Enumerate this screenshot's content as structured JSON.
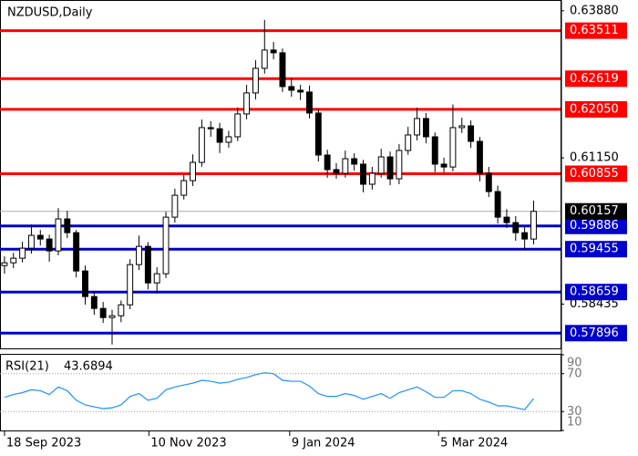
{
  "chart_data": {
    "type": "candlestick",
    "title": "NZDUSD,Daily",
    "open": [
      0.5915,
      0.59202,
      0.59287,
      0.59473,
      0.59711,
      0.59643,
      0.59422,
      0.60016,
      0.59761,
      0.5905,
      0.58575,
      0.58355,
      0.58185,
      0.58219,
      0.58422,
      0.59168,
      0.59507,
      0.58829,
      0.58999,
      0.60049,
      0.60456,
      0.60727,
      0.61066,
      0.61711,
      0.6169,
      0.61439,
      0.61541,
      0.61965,
      0.62355,
      0.62812,
      0.63151,
      0.631,
      0.62473,
      0.62405,
      0.62372,
      0.61982,
      0.61202,
      0.60931,
      0.60863,
      0.61134,
      0.61033,
      0.6066,
      0.60863,
      0.61168,
      0.60761,
      0.61287,
      0.61575,
      0.6188,
      0.61541,
      0.61033,
      0.6098,
      0.61711,
      0.61744,
      0.61456,
      0.60863,
      0.60524,
      0.60049,
      0.59948,
      0.59761,
      0.59643
    ],
    "high": [
      0.59322,
      0.59387,
      0.59593,
      0.59911,
      0.59811,
      0.59723,
      0.60216,
      0.60166,
      0.59811,
      0.5915,
      0.58655,
      0.58475,
      0.58329,
      0.58502,
      0.59268,
      0.59707,
      0.59587,
      0.59119,
      0.60149,
      0.60576,
      0.60837,
      0.61216,
      0.61861,
      0.61831,
      0.61798,
      0.61651,
      0.62085,
      0.62505,
      0.62962,
      0.63711,
      0.63301,
      0.6318,
      0.62623,
      0.62505,
      0.62492,
      0.62062,
      0.61302,
      0.61051,
      0.61284,
      0.61234,
      0.61113,
      0.60983,
      0.61318,
      0.61268,
      0.61407,
      0.61725,
      0.6208,
      0.6198,
      0.61621,
      0.61153,
      0.6214,
      0.61894,
      0.61844,
      0.61536,
      0.60983,
      0.60634,
      0.60199,
      0.60068,
      0.59871,
      0.60357
    ],
    "low": [
      0.59,
      0.59102,
      0.59207,
      0.59373,
      0.59523,
      0.59222,
      0.59342,
      0.59661,
      0.5893,
      0.58425,
      0.58235,
      0.58085,
      0.57685,
      0.58099,
      0.58342,
      0.59068,
      0.58709,
      0.58629,
      0.58919,
      0.59949,
      0.60376,
      0.60627,
      0.60986,
      0.6154,
      0.61239,
      0.61339,
      0.61461,
      0.61865,
      0.62235,
      0.62712,
      0.6298,
      0.62373,
      0.62285,
      0.62222,
      0.61882,
      0.61082,
      0.60781,
      0.60763,
      0.60783,
      0.60913,
      0.6051,
      0.6056,
      0.60783,
      0.60641,
      0.60661,
      0.61207,
      0.61475,
      0.61421,
      0.60883,
      0.6088,
      0.609,
      0.61611,
      0.61336,
      0.60713,
      0.60424,
      0.59929,
      0.59848,
      0.59611,
      0.59443,
      0.59543
    ],
    "close": [
      0.59202,
      0.59287,
      0.59473,
      0.59711,
      0.59643,
      0.59422,
      0.60016,
      0.59761,
      0.5905,
      0.58575,
      0.58355,
      0.58185,
      0.58219,
      0.58422,
      0.59168,
      0.59507,
      0.58829,
      0.58999,
      0.60049,
      0.60456,
      0.60727,
      0.61066,
      0.61711,
      0.6169,
      0.61439,
      0.61541,
      0.61965,
      0.62355,
      0.62812,
      0.63151,
      0.631,
      0.62473,
      0.62405,
      0.62372,
      0.61982,
      0.61202,
      0.60931,
      0.60863,
      0.61134,
      0.61033,
      0.6066,
      0.60863,
      0.61168,
      0.60761,
      0.61287,
      0.61575,
      0.6188,
      0.61541,
      0.61033,
      0.6098,
      0.61711,
      0.61744,
      0.61456,
      0.60863,
      0.60524,
      0.60049,
      0.59948,
      0.59761,
      0.59643,
      0.60157
    ],
    "up_color": "#ffffff",
    "down_color": "#000000",
    "outline_color": "#000000",
    "xlim": [
      -0.5,
      62
    ],
    "xticks": [
      {
        "value": 0,
        "label": "18 Sep 2023"
      },
      {
        "value": 16.1,
        "label": "10 Nov 2023"
      },
      {
        "value": 31.8,
        "label": "9 Jan 2024"
      },
      {
        "value": 48.4,
        "label": "5 Mar 2024"
      }
    ],
    "ylim": [
      0.5763,
      0.6408
    ],
    "yticks": [
      {
        "value": 0.6388,
        "label": "0.63880"
      },
      {
        "value": 0.6115,
        "label": "0.61150"
      },
      {
        "value": 0.58435,
        "label": "0.58435"
      }
    ],
    "levels": [
      {
        "value": 0.63511,
        "label": "0.63511",
        "color": "#ff0000"
      },
      {
        "value": 0.62619,
        "label": "0.62619",
        "color": "#ff0000"
      },
      {
        "value": 0.6205,
        "label": "0.62050",
        "color": "#ff0000"
      },
      {
        "value": 0.60855,
        "label": "0.60855",
        "color": "#ff0000"
      },
      {
        "value": 0.59886,
        "label": "0.59886",
        "color": "#0000cc"
      },
      {
        "value": 0.59455,
        "label": "0.59455",
        "color": "#0000cc"
      },
      {
        "value": 0.58659,
        "label": "0.58659",
        "color": "#0000cc"
      },
      {
        "value": 0.57896,
        "label": "0.57896",
        "color": "#0000cc"
      }
    ],
    "last_price": {
      "value": 0.60157,
      "label": "0.60157"
    },
    "rsi": {
      "name": "RSI(21)",
      "color": "#1e90ff",
      "values": [
        45,
        48,
        50,
        53,
        52,
        48,
        56,
        52,
        42,
        37,
        35,
        33,
        34,
        37,
        46,
        49,
        42,
        44,
        53,
        56,
        58,
        60,
        63,
        62,
        60,
        61,
        64,
        66,
        69,
        71,
        70,
        63,
        62,
        62,
        57,
        49,
        46,
        46,
        49,
        47,
        43,
        46,
        49,
        44,
        50,
        53,
        56,
        51,
        45,
        45,
        52,
        52,
        49,
        43,
        40,
        36,
        36,
        34,
        32,
        43.6894
      ],
      "ylim": [
        10,
        90
      ],
      "yticks": [
        90,
        70,
        30,
        10
      ],
      "levels": [
        70,
        30
      ]
    }
  }
}
